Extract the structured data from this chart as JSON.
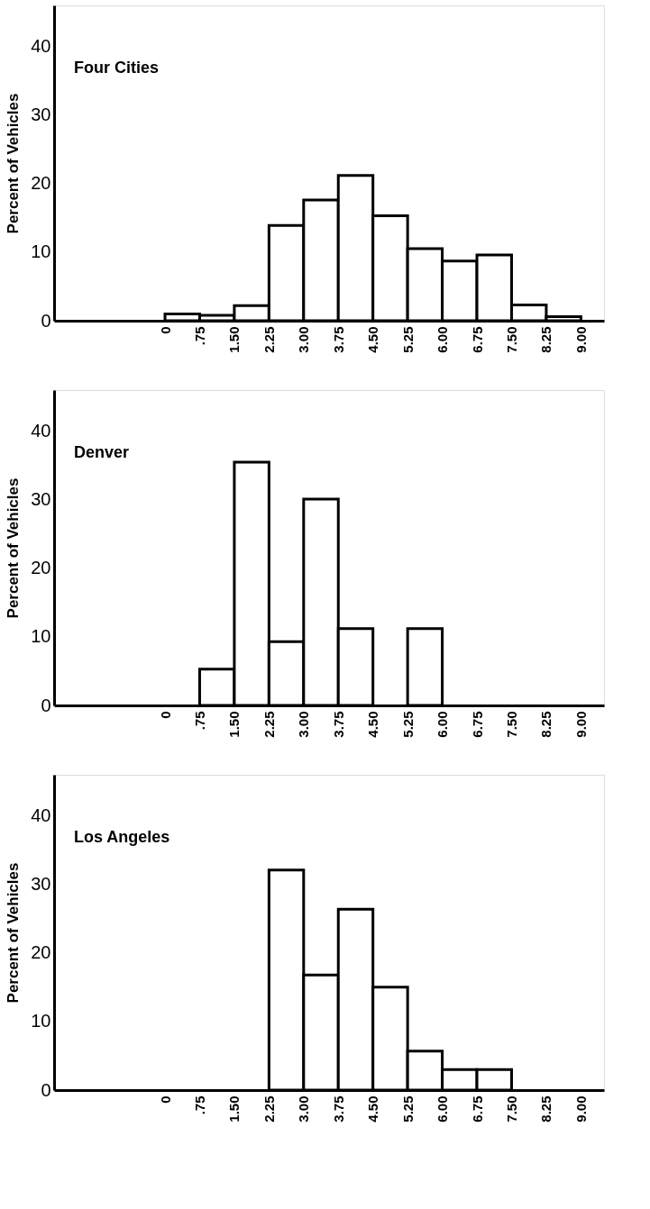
{
  "chart_data": [
    {
      "type": "histogram",
      "title": "Four Cities",
      "ylabel": "Percent of Vehicles",
      "bins": [
        0,
        0.75,
        1.5,
        2.25,
        3,
        3.75,
        4.5,
        5.25,
        6,
        6.75,
        7.5,
        8.25,
        9
      ],
      "values": [
        1,
        0.8,
        2.2,
        13.9,
        17.6,
        21.2,
        15.3,
        10.5,
        8.7,
        9.6,
        2.3,
        0.6
      ],
      "color": "#ffffff",
      "xlim": [
        -2.4,
        9.5
      ],
      "ylim": [
        0,
        46
      ],
      "yticks": [
        0,
        10,
        20,
        30,
        40
      ],
      "xticks": [
        0,
        {
          "value": 0.75,
          "label": ".75"
        },
        {
          "value": 1.5,
          "label": "1.50"
        },
        {
          "value": 2.25,
          "label": "2.25"
        },
        {
          "value": 3,
          "label": "3.00"
        },
        {
          "value": 3.75,
          "label": "3.75"
        },
        {
          "value": 4.5,
          "label": "4.50"
        },
        {
          "value": 5.25,
          "label": "5.25"
        },
        {
          "value": 6,
          "label": "6.00"
        },
        {
          "value": 6.75,
          "label": "6.75"
        },
        {
          "value": 7.5,
          "label": "7.50"
        },
        {
          "value": 8.25,
          "label": "8.25"
        },
        {
          "value": 9,
          "label": "9.00"
        }
      ],
      "grid": false
    },
    {
      "type": "histogram",
      "title": "Denver",
      "ylabel": "Percent of Vehicles",
      "bins": [
        0,
        0.75,
        1.5,
        2.25,
        3,
        3.75,
        4.5,
        5.25,
        6,
        6.75,
        7.5,
        8.25,
        9
      ],
      "values": [
        null,
        5.3,
        35.5,
        9.3,
        30.1,
        11.2,
        null,
        11.2,
        null,
        null,
        null,
        null
      ],
      "color": "#ffffff",
      "xlim": [
        -2.4,
        9.5
      ],
      "ylim": [
        0,
        46
      ],
      "yticks": [
        0,
        10,
        20,
        30,
        40
      ],
      "xticks": [
        0,
        {
          "value": 0.75,
          "label": ".75"
        },
        {
          "value": 1.5,
          "label": "1.50"
        },
        {
          "value": 2.25,
          "label": "2.25"
        },
        {
          "value": 3,
          "label": "3.00"
        },
        {
          "value": 3.75,
          "label": "3.75"
        },
        {
          "value": 4.5,
          "label": "4.50"
        },
        {
          "value": 5.25,
          "label": "5.25"
        },
        {
          "value": 6,
          "label": "6.00"
        },
        {
          "value": 6.75,
          "label": "6.75"
        },
        {
          "value": 7.5,
          "label": "7.50"
        },
        {
          "value": 8.25,
          "label": "8.25"
        },
        {
          "value": 9,
          "label": "9.00"
        }
      ],
      "grid": false
    },
    {
      "type": "histogram",
      "title": "Los Angeles",
      "ylabel": "Percent of Vehicles",
      "bins": [
        0,
        0.75,
        1.5,
        2.25,
        3,
        3.75,
        4.5,
        5.25,
        6,
        6.75,
        7.5,
        8.25,
        9
      ],
      "values": [
        null,
        null,
        null,
        32.1,
        16.8,
        26.4,
        15,
        5.7,
        3,
        3,
        null,
        null
      ],
      "color": "#ffffff",
      "xlim": [
        -2.4,
        9.5
      ],
      "ylim": [
        0,
        46
      ],
      "yticks": [
        0,
        10,
        20,
        30,
        40
      ],
      "xticks": [
        0,
        {
          "value": 0.75,
          "label": ".75"
        },
        {
          "value": 1.5,
          "label": "1.50"
        },
        {
          "value": 2.25,
          "label": "2.25"
        },
        {
          "value": 3,
          "label": "3.00"
        },
        {
          "value": 3.75,
          "label": "3.75"
        },
        {
          "value": 4.5,
          "label": "4.50"
        },
        {
          "value": 5.25,
          "label": "5.25"
        },
        {
          "value": 6,
          "label": "6.00"
        },
        {
          "value": 6.75,
          "label": "6.75"
        },
        {
          "value": 7.5,
          "label": "7.50"
        },
        {
          "value": 8.25,
          "label": "8.25"
        },
        {
          "value": 9,
          "label": "9.00"
        }
      ],
      "grid": false
    }
  ]
}
